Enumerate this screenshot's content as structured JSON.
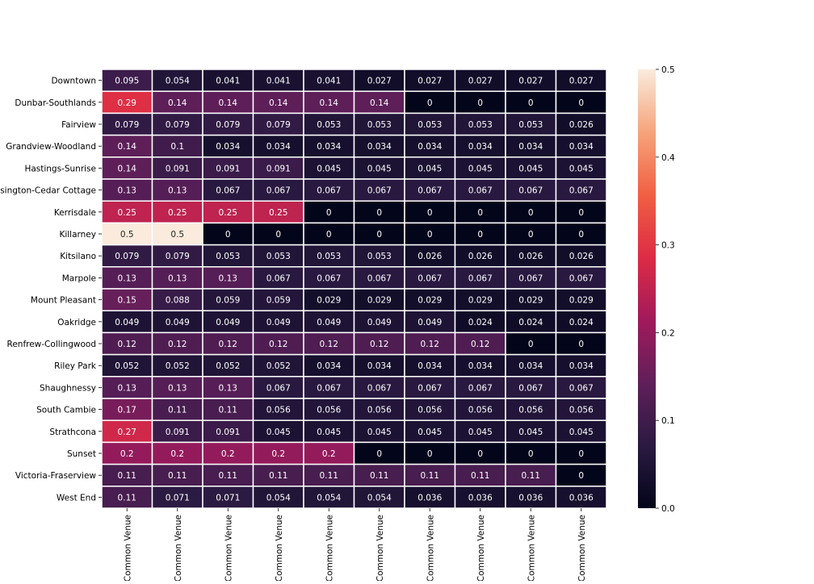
{
  "chart_data": {
    "type": "heatmap",
    "title": "",
    "xlabel": "",
    "ylabel": "",
    "rows": [
      "Downtown",
      "Dunbar-Southlands",
      "Fairview",
      "Grandview-Woodland",
      "Hastings-Sunrise",
      "Kensington-Cedar Cottage",
      "Kerrisdale",
      "Killarney",
      "Kitsilano",
      "Marpole",
      "Mount Pleasant",
      "Oakridge",
      "Renfrew-Collingwood",
      "Riley Park",
      "Shaughnessy",
      "South Cambie",
      "Strathcona",
      "Sunset",
      "Victoria-Fraserview",
      "West End"
    ],
    "columns": [
      "Common Venue",
      "Common Venue",
      "Common Venue",
      "Common Venue",
      "Common Venue",
      "Common Venue",
      "Common Venue",
      "Common Venue",
      "Common Venue",
      "Common Venue"
    ],
    "values": [
      [
        0.095,
        0.054,
        0.041,
        0.041,
        0.041,
        0.027,
        0.027,
        0.027,
        0.027,
        0.027
      ],
      [
        0.29,
        0.14,
        0.14,
        0.14,
        0.14,
        0.14,
        0,
        0,
        0,
        0
      ],
      [
        0.079,
        0.079,
        0.079,
        0.079,
        0.053,
        0.053,
        0.053,
        0.053,
        0.053,
        0.026
      ],
      [
        0.14,
        0.1,
        0.034,
        0.034,
        0.034,
        0.034,
        0.034,
        0.034,
        0.034,
        0.034
      ],
      [
        0.14,
        0.091,
        0.091,
        0.091,
        0.045,
        0.045,
        0.045,
        0.045,
        0.045,
        0.045
      ],
      [
        0.13,
        0.13,
        0.067,
        0.067,
        0.067,
        0.067,
        0.067,
        0.067,
        0.067,
        0.067
      ],
      [
        0.25,
        0.25,
        0.25,
        0.25,
        0,
        0,
        0,
        0,
        0,
        0
      ],
      [
        0.5,
        0.5,
        0,
        0,
        0,
        0,
        0,
        0,
        0,
        0
      ],
      [
        0.079,
        0.079,
        0.053,
        0.053,
        0.053,
        0.053,
        0.026,
        0.026,
        0.026,
        0.026
      ],
      [
        0.13,
        0.13,
        0.13,
        0.067,
        0.067,
        0.067,
        0.067,
        0.067,
        0.067,
        0.067
      ],
      [
        0.15,
        0.088,
        0.059,
        0.059,
        0.029,
        0.029,
        0.029,
        0.029,
        0.029,
        0.029
      ],
      [
        0.049,
        0.049,
        0.049,
        0.049,
        0.049,
        0.049,
        0.049,
        0.024,
        0.024,
        0.024
      ],
      [
        0.12,
        0.12,
        0.12,
        0.12,
        0.12,
        0.12,
        0.12,
        0.12,
        0,
        0
      ],
      [
        0.052,
        0.052,
        0.052,
        0.052,
        0.034,
        0.034,
        0.034,
        0.034,
        0.034,
        0.034
      ],
      [
        0.13,
        0.13,
        0.13,
        0.067,
        0.067,
        0.067,
        0.067,
        0.067,
        0.067,
        0.067
      ],
      [
        0.17,
        0.11,
        0.11,
        0.056,
        0.056,
        0.056,
        0.056,
        0.056,
        0.056,
        0.056
      ],
      [
        0.27,
        0.091,
        0.091,
        0.045,
        0.045,
        0.045,
        0.045,
        0.045,
        0.045,
        0.045
      ],
      [
        0.2,
        0.2,
        0.2,
        0.2,
        0.2,
        0,
        0,
        0,
        0,
        0
      ],
      [
        0.11,
        0.11,
        0.11,
        0.11,
        0.11,
        0.11,
        0.11,
        0.11,
        0.11,
        0
      ],
      [
        0.11,
        0.071,
        0.071,
        0.054,
        0.054,
        0.054,
        0.036,
        0.036,
        0.036,
        0.036
      ]
    ],
    "colorbar": {
      "vmin": 0,
      "vmax": 0.5,
      "ticks": [
        0.0,
        0.1,
        0.2,
        0.3,
        0.4,
        0.5
      ],
      "tick_labels": [
        "0.0",
        "0.1",
        "0.2",
        "0.3",
        "0.4",
        "0.5"
      ]
    },
    "colormap": "rocket",
    "colormap_stops": [
      "#03051a",
      "#2b1a42",
      "#601f5a",
      "#a11a5b",
      "#dd2c45",
      "#f06043",
      "#f6a47b",
      "#faebdd"
    ],
    "cell_gridlines": "white",
    "annotations": true,
    "grid": false
  }
}
